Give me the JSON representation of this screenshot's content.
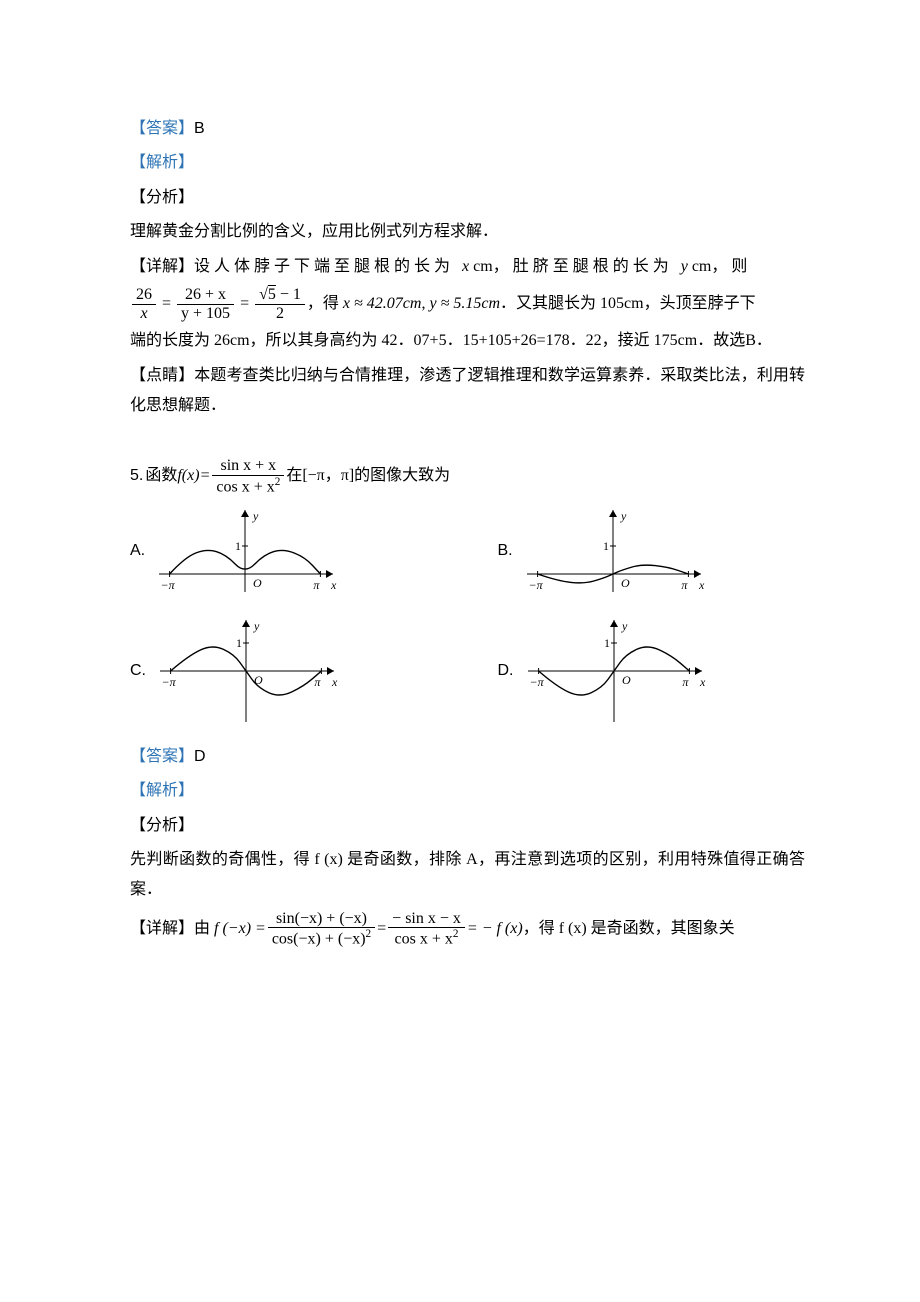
{
  "colors": {
    "text": "#000000",
    "accent": "#2e74b5",
    "background": "#ffffff",
    "axis": "#000000",
    "curve": "#000000"
  },
  "typography": {
    "body_family": "SimSun",
    "math_family": "Times New Roman",
    "sans_family": "Arial",
    "body_size_pt": 12,
    "line_height": 1.9
  },
  "q4": {
    "answer_label": "【答案】",
    "answer_value": "B",
    "parse_label": "【解析】",
    "analysis_label": "【分析】",
    "analysis_text": "理解黄金分割比例的含义，应用比例式列方程求解．",
    "detail_label": "【详解】",
    "detail_lead": "设人体脖子下端至腿根的长为 ",
    "var_x": "x",
    "unit_cm": " cm",
    "detail_mid1": "，肚脐至腿根的长为 ",
    "var_y": "y",
    "detail_mid2": "，则",
    "eq": {
      "frac1_num": "26",
      "frac1_den": "x",
      "frac2_num": "26 + x",
      "frac2_den": "y + 105",
      "frac3_num_sqrt_inner": "5",
      "frac3_num_tail": " − 1",
      "frac3_den": "2"
    },
    "detail_after_eq1": "，得 ",
    "approx_x": "x ≈ 42.07cm",
    "approx_sep": ", ",
    "approx_y": "y ≈ 5.15cm",
    "detail_after_eq2": "．又其腿长为 105cm，头顶至脖子下",
    "detail_line2": "端的长度为 26cm，所以其身高约为 42．07+5．15+105+26=178．22，接近 175cm．故选B．",
    "insight_label": "【点睛】",
    "insight_text": "本题考查类比归纳与合情推理，渗透了逻辑推理和数学运算素养．采取类比法，利用转化思想解题．"
  },
  "q5": {
    "number": "5.",
    "stem_pre": "函数 ",
    "fx": "f(x)=",
    "frac_num": "sin x + x",
    "frac_den_pre": "cos x + x",
    "frac_den_sup": "2",
    "stem_mid": " 在[−π，π]的图像大致为",
    "options": [
      "A.",
      "B.",
      "C.",
      "D."
    ],
    "graphs": {
      "type": "function_curve",
      "axis_labels": {
        "x_neg": "−π",
        "x_pos": "π",
        "y_tick": "1",
        "x_axis": "x",
        "y_axis": "y",
        "origin": "O"
      },
      "xlim": [
        -3.8,
        3.8
      ],
      "ylim": [
        -1.6,
        1.6
      ],
      "axis_color": "#000000",
      "curve_color": "#000000",
      "curve_width": 1.4,
      "variants": {
        "A": {
          "desc": "bump_left_pos_bump_right_pos_sym_even",
          "points": [
            [
              -3.1416,
              0
            ],
            [
              -2.5,
              0.6
            ],
            [
              -1.6,
              0.9
            ],
            [
              -0.8,
              0.7
            ],
            [
              0,
              0
            ],
            [
              0.8,
              0.7
            ],
            [
              1.6,
              0.9
            ],
            [
              2.5,
              0.6
            ],
            [
              3.1416,
              0
            ]
          ]
        },
        "B": {
          "desc": "dip_left_small_bump_right_small_odd",
          "points": [
            [
              -3.1416,
              0
            ],
            [
              -2.3,
              -0.25
            ],
            [
              -1.2,
              -0.35
            ],
            [
              -0.4,
              -0.15
            ],
            [
              0,
              0
            ],
            [
              0.4,
              0.15
            ],
            [
              1.2,
              0.35
            ],
            [
              2.3,
              0.25
            ],
            [
              3.1416,
              0
            ]
          ]
        },
        "C": {
          "desc": "bump_left_up_dip_right_down",
          "points": [
            [
              -3.1416,
              0
            ],
            [
              -2.4,
              0.55
            ],
            [
              -1.4,
              0.95
            ],
            [
              -0.5,
              0.6
            ],
            [
              0,
              0
            ],
            [
              0.5,
              -0.6
            ],
            [
              1.4,
              -0.95
            ],
            [
              2.4,
              -0.55
            ],
            [
              3.1416,
              0
            ]
          ]
        },
        "D": {
          "desc": "dip_left_down_bump_right_up_odd_actual",
          "points": [
            [
              -3.1416,
              0
            ],
            [
              -2.4,
              -0.55
            ],
            [
              -1.4,
              -0.95
            ],
            [
              -0.5,
              -0.6
            ],
            [
              0,
              0
            ],
            [
              0.5,
              0.6
            ],
            [
              1.4,
              0.95
            ],
            [
              2.4,
              0.55
            ],
            [
              3.1416,
              0
            ]
          ]
        }
      }
    },
    "answer_label": "【答案】",
    "answer_value": "D",
    "parse_label": "【解析】",
    "analysis_label": "【分析】",
    "analysis_text": "先判断函数的奇偶性，得 f (x) 是奇函数，排除 A，再注意到选项的区别，利用特殊值得正确答案．",
    "detail_label": "【详解】",
    "detail_pre": "由 ",
    "eq": {
      "lhs": "f (−x) = ",
      "frac1_num": "sin(−x) + (−x)",
      "frac1_den_pre": "cos(−x) + (−x)",
      "frac1_den_sup": "2",
      "mid1": " = ",
      "frac2_num": "− sin x − x",
      "frac2_den_pre": "cos x + x",
      "frac2_den_sup": "2",
      "mid2": " = − f (x)"
    },
    "detail_post": "，得 f (x) 是奇函数，其图象关"
  }
}
